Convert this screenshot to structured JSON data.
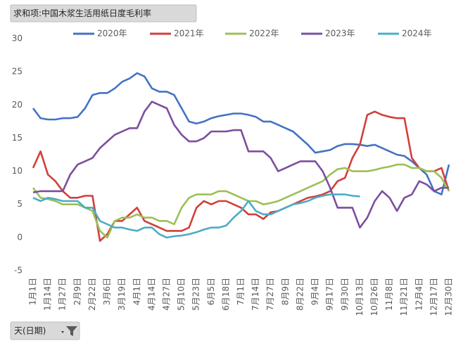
{
  "pivot_buttons": {
    "value_field": "求和项:中国木浆生活用纸日度毛利率",
    "axis_field": "天(日期)"
  },
  "chart_data": {
    "type": "line",
    "categories": [
      "1月1日",
      null,
      "1月14日",
      null,
      "1月27日",
      null,
      "2月9日",
      null,
      "2月22日",
      null,
      "3月6日",
      null,
      "3月19日",
      null,
      "4月1日",
      null,
      "4月14日",
      null,
      "4月27日",
      null,
      "5月10日",
      null,
      "5月23日",
      null,
      "6月5日",
      null,
      "6月18日",
      null,
      "7月1日",
      null,
      "7月14日",
      null,
      "7月27日",
      null,
      "8月9日",
      null,
      "8月22日",
      null,
      "9月4日",
      null,
      "9月17日",
      null,
      "9月30日",
      null,
      "10月13日",
      null,
      "10月26日",
      null,
      "11月8日",
      null,
      "11月21日",
      null,
      "12月4日",
      null,
      "12月17日",
      null,
      "12月30日"
    ],
    "series": [
      {
        "name": "2020年",
        "color": "#4472c4",
        "values": [
          19.5,
          18.0,
          17.8,
          17.8,
          18,
          18,
          18.2,
          19.5,
          21.5,
          21.8,
          21.8,
          22.5,
          23.5,
          24,
          24.8,
          24.3,
          22.5,
          22,
          22,
          21.5,
          19.5,
          17.5,
          17.2,
          17.5,
          18,
          18.3,
          18.5,
          18.7,
          18.7,
          18.5,
          18.2,
          17.5,
          17.5,
          17,
          16.5,
          16,
          15,
          14,
          12.8,
          13,
          13.2,
          13.8,
          14.1,
          14.1,
          14,
          13.8,
          14,
          13.5,
          13,
          12.5,
          12.3,
          11.5,
          10.5,
          9.5,
          7,
          6.5,
          11
        ]
      },
      {
        "name": "2021年",
        "color": "#d0403c",
        "values": [
          10.5,
          13,
          9.5,
          8.5,
          7,
          6,
          6,
          6.3,
          6.3,
          -0.5,
          0.5,
          2.5,
          2.5,
          3.5,
          4.5,
          2.5,
          2,
          1.5,
          1,
          1,
          1,
          1.5,
          4.5,
          5.5,
          5,
          5.5,
          5.5,
          5,
          4.5,
          3.5,
          3.5,
          2.8,
          3.8,
          4,
          4.5,
          5,
          5.5,
          6,
          6.2,
          6.5,
          7,
          8.5,
          9,
          12,
          14,
          18.5,
          19,
          18.5,
          18.2,
          18,
          18,
          12,
          10.5,
          10,
          10,
          10.5,
          7
        ]
      },
      {
        "name": "2022年",
        "color": "#9bc055",
        "values": [
          7.5,
          6,
          5.8,
          5.5,
          5,
          5,
          5,
          4.5,
          4,
          1,
          0,
          2.5,
          3,
          3,
          3.5,
          3,
          3,
          2.5,
          2.5,
          2,
          4.5,
          6,
          6.5,
          6.5,
          6.5,
          7,
          7,
          6.5,
          6,
          5.5,
          5.5,
          5,
          5.2,
          5.5,
          6,
          6.5,
          7,
          7.5,
          8,
          8.5,
          9.5,
          10.3,
          10.5,
          10,
          10,
          10,
          10.2,
          10.5,
          10.7,
          11,
          11,
          10.5,
          10.5,
          10,
          10,
          9,
          7
        ]
      },
      {
        "name": "2023年",
        "color": "#7c4e9e",
        "values": [
          6.8,
          7,
          7,
          7,
          7,
          9.5,
          11,
          11.5,
          12,
          13.5,
          14.5,
          15.5,
          16,
          16.5,
          16.5,
          19,
          20.5,
          20,
          19.5,
          17,
          15.5,
          14.5,
          14.5,
          15,
          16,
          16,
          16,
          16.2,
          16.2,
          13,
          13,
          13,
          12,
          10,
          10.5,
          11,
          11.5,
          11.5,
          11.5,
          10,
          7.5,
          4.5,
          4.5,
          4.5,
          1.5,
          3,
          5.5,
          7,
          6,
          4,
          6,
          6.5,
          8.5,
          8,
          7,
          7.5,
          7.5
        ]
      },
      {
        "name": "2024年",
        "color": "#4bacc6",
        "values": [
          6,
          5.5,
          6,
          5.8,
          5.5,
          5.5,
          5.5,
          4.5,
          4.5,
          2.5,
          2,
          1.5,
          1.5,
          1.2,
          1,
          1.5,
          1.5,
          0.5,
          0,
          0.2,
          0.3,
          0.5,
          0.8,
          1.2,
          1.5,
          1.5,
          1.8,
          3,
          4,
          5.5,
          4,
          3.5,
          3.5,
          4,
          4.5,
          5,
          5.2,
          5.5,
          6,
          6.3,
          6.5,
          6.5,
          6.5,
          6.3,
          6.2,
          null,
          null,
          null,
          null,
          null,
          null,
          null,
          null,
          null,
          null,
          null,
          null
        ]
      }
    ],
    "ylim": [
      -5,
      30
    ],
    "yticks": [
      30,
      25,
      20,
      15,
      10,
      5,
      0,
      -5
    ],
    "grid": false,
    "legend": "top"
  }
}
